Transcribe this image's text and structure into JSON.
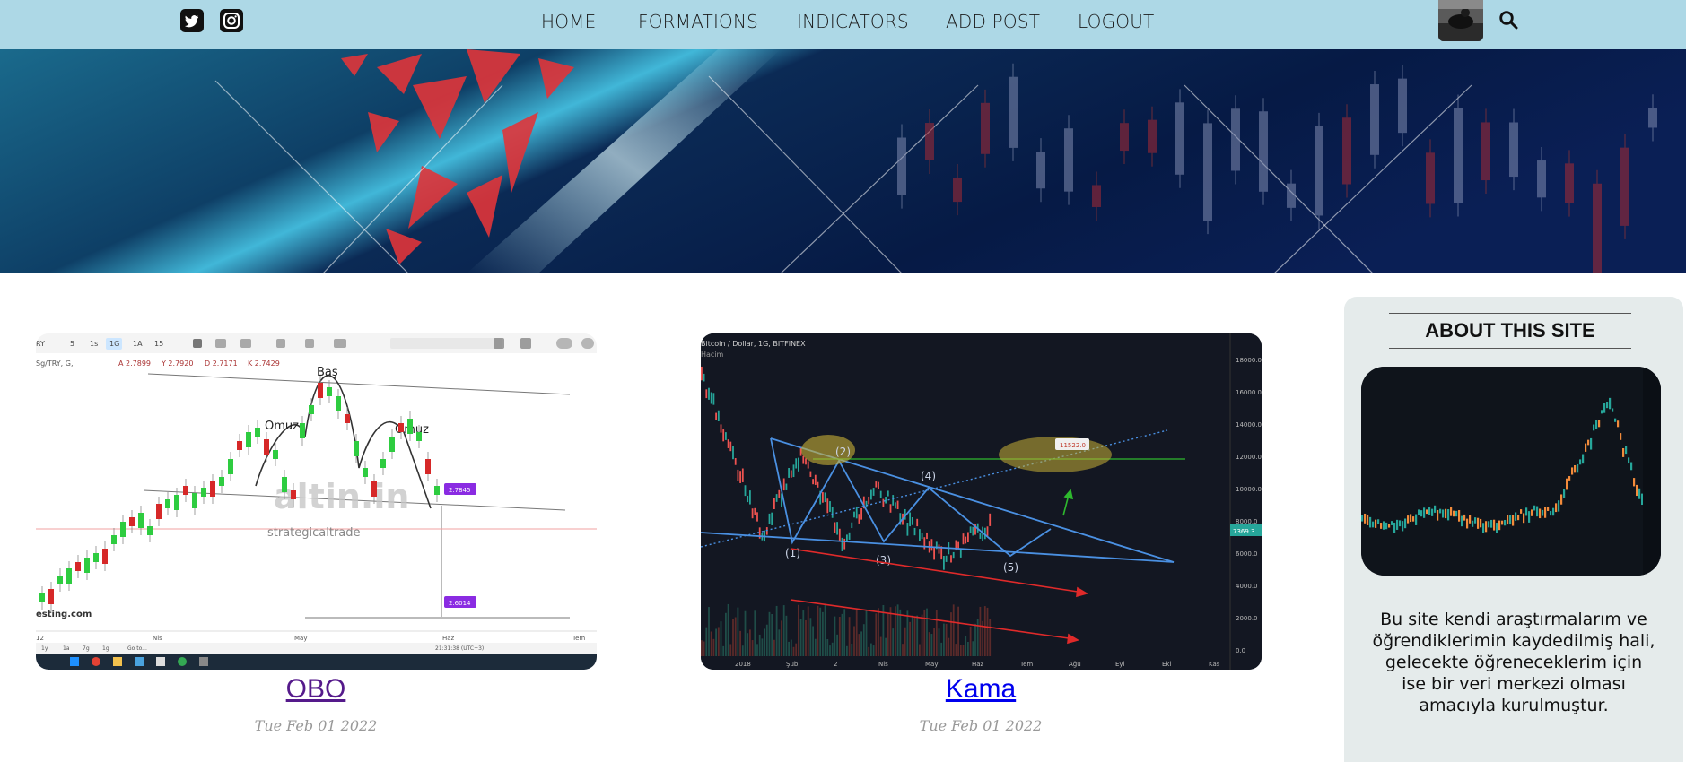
{
  "nav": {
    "social": [
      "twitter-icon",
      "instagram-icon"
    ],
    "links": [
      "HOME",
      "FORMATIONS",
      "INDICATORS",
      "ADD POST",
      "LOGOUT"
    ],
    "bg_color": "#add8e6"
  },
  "posts": [
    {
      "title": "OBO",
      "date": "Tue Feb 01 2022",
      "image": {
        "labels": {
          "head": "Baş",
          "left_shoulder": "Omuz",
          "right_shoulder": "Omuz"
        },
        "watermark": "altin.in",
        "watermark_sub": "strategicaltrade",
        "toolbar": [
          "5",
          "1s",
          "1G",
          "1A",
          "15"
        ],
        "ohlc": [
          "A 2.7899",
          "Y 2.7920",
          "D 2.7171",
          "K 2.7429"
        ],
        "symbol": "Sg/TRY, G,",
        "price_tags": [
          "2.7845",
          "2.6014"
        ],
        "x_ticks": [
          "12",
          "Nis",
          "May",
          "Haz",
          "Tem"
        ],
        "bottom_ranges": [
          "1y",
          "1a",
          "7g",
          "1g",
          "Go to..."
        ],
        "clock": "21:31:38 (UTC+3)",
        "source": "esting.com"
      }
    },
    {
      "title": "Kama",
      "date": "Tue Feb 01 2022",
      "image": {
        "header": "Bitcoin / Dollar, 1G, BITFINEX",
        "sub": "Hacim",
        "wave_labels": [
          "(1)",
          "(2)",
          "(3)",
          "(4)",
          "(5)"
        ],
        "target": "11522.0",
        "price_tag": "7369.3",
        "y_ticks": [
          "18000.0",
          "16000.0",
          "14000.0",
          "12000.0",
          "10000.0",
          "8000.0",
          "6000.0",
          "4000.0",
          "2000.0",
          "0.0"
        ],
        "x_ticks": [
          "2018",
          "Şub",
          "2",
          "Nis",
          "May",
          "Haz",
          "Tem",
          "Ağu",
          "Eyl",
          "Eki",
          "Kas"
        ]
      }
    }
  ],
  "sidebar": {
    "title": "ABOUT THIS SITE",
    "text": "Bu site kendi araştırmalarım ve öğrendiklerimin kaydedilmiş hali, gelecekte öğreneceklerim için ise bir veri merkezi olması amacıyla kurulmuştur."
  }
}
